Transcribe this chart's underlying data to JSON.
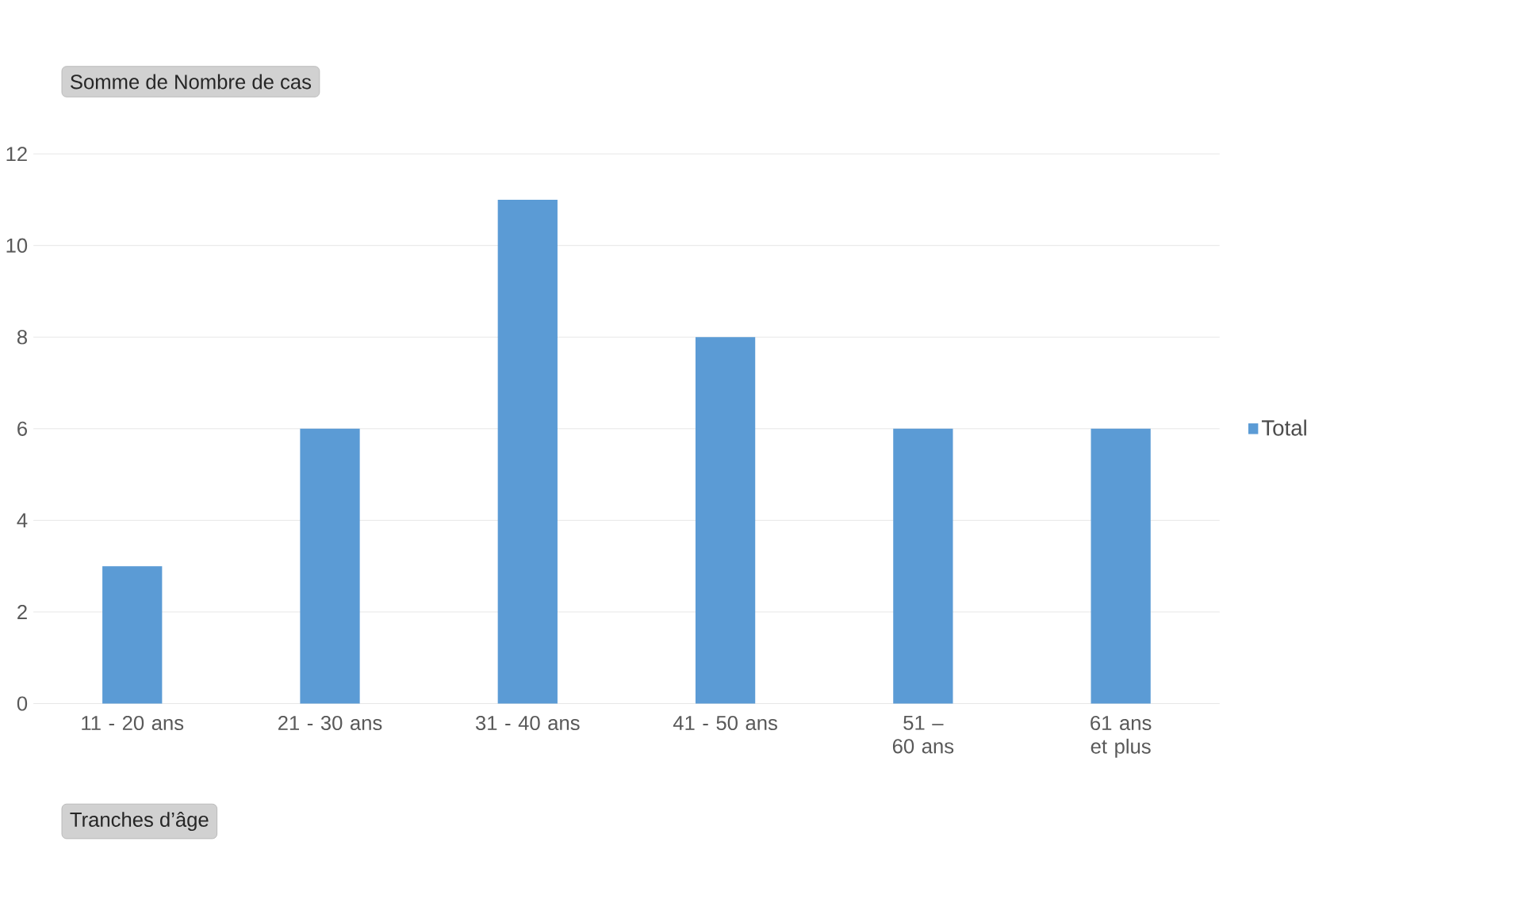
{
  "chart_data": {
    "type": "bar",
    "xlabel": "Tranches d’âge",
    "ylabel": "Somme de Nombre de cas",
    "categories": [
      "11 - 20 ans",
      "21 - 30 ans",
      "31 - 40 ans",
      "41 - 50 ans",
      "51 – 60 ans",
      "61 ans et plus"
    ],
    "series": [
      {
        "name": "Total",
        "color": "#5b9bd5",
        "values": [
          3,
          6,
          11,
          8,
          6,
          6
        ]
      }
    ],
    "ylim": [
      0,
      12
    ],
    "yticks": [
      0,
      2,
      4,
      6,
      8,
      10,
      12
    ],
    "grid": "y",
    "legend": "right"
  }
}
